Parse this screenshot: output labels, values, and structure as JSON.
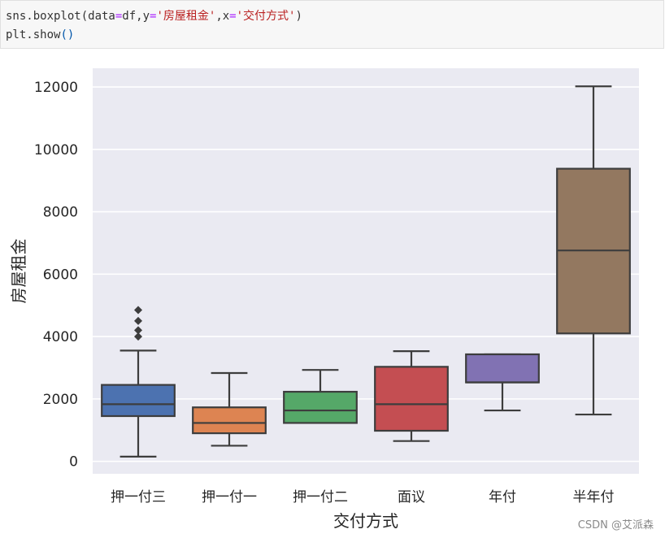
{
  "code": {
    "line1": {
      "prefix": "sns.boxplot(data",
      "eq1": "=",
      "mid1": "df,y",
      "eq2": "=",
      "str1": "'房屋租金'",
      "mid2": ",x",
      "eq3": "=",
      "str2": "'交付方式'",
      "suffix": ")"
    },
    "line2": {
      "prefix": "plt.show",
      "parens": "()"
    }
  },
  "chart_data": {
    "type": "boxplot",
    "xlabel": "交付方式",
    "ylabel": "房屋租金",
    "ylim": [
      -400,
      12600
    ],
    "yticks": [
      0,
      2000,
      4000,
      6000,
      8000,
      10000,
      12000
    ],
    "grid": true,
    "categories": [
      "押一付三",
      "押一付一",
      "押一付二",
      "面议",
      "年付",
      "半年付"
    ],
    "boxes": [
      {
        "category": "押一付三",
        "whisker_low": 150,
        "q1": 1450,
        "median": 1830,
        "q3": 2450,
        "whisker_high": 3550,
        "outliers": [
          4000,
          4200,
          4500,
          4850
        ],
        "color": "#4c72b0"
      },
      {
        "category": "押一付一",
        "whisker_low": 500,
        "q1": 900,
        "median": 1230,
        "q3": 1730,
        "whisker_high": 2830,
        "outliers": [],
        "color": "#dd8452"
      },
      {
        "category": "押一付二",
        "whisker_low": 1230,
        "q1": 1230,
        "median": 1630,
        "q3": 2230,
        "whisker_high": 2930,
        "outliers": [],
        "color": "#55a868"
      },
      {
        "category": "面议",
        "whisker_low": 650,
        "q1": 980,
        "median": 1830,
        "q3": 3030,
        "whisker_high": 3530,
        "outliers": [],
        "color": "#c44e52"
      },
      {
        "category": "年付",
        "whisker_low": 1630,
        "q1": 2530,
        "median": 2530,
        "q3": 3430,
        "whisker_high": 3430,
        "outliers": [],
        "color": "#8172b3"
      },
      {
        "category": "半年付",
        "whisker_low": 1500,
        "q1": 4100,
        "median": 6760,
        "q3": 9380,
        "whisker_high": 12020,
        "outliers": [],
        "color": "#937860"
      }
    ]
  },
  "watermark": "CSDN @艾派森"
}
